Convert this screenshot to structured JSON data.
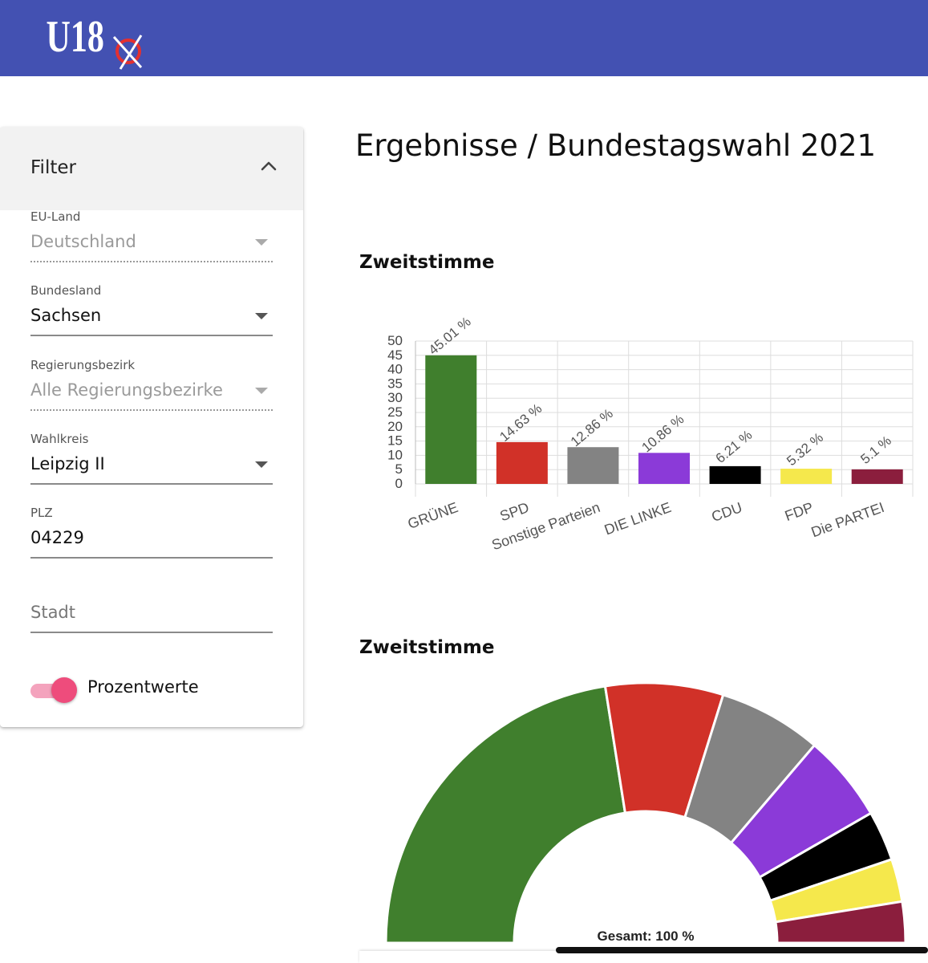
{
  "header": {
    "logo_text": "U18",
    "brand_color": "#4351b2"
  },
  "filter": {
    "title": "Filter",
    "fields": [
      {
        "label": "EU-Land",
        "value": "Deutschland",
        "disabled": true
      },
      {
        "label": "Bundesland",
        "value": "Sachsen",
        "disabled": false
      },
      {
        "label": "Regierungsbezirk",
        "value": "Alle Regierungsbezirke",
        "disabled": true
      },
      {
        "label": "Wahlkreis",
        "value": "Leipzig II",
        "disabled": false
      },
      {
        "label": "PLZ",
        "value": "04229"
      },
      {
        "label": "",
        "placeholder": "Stadt",
        "value": ""
      }
    ],
    "toggle": {
      "label": "Prozentwerte",
      "on": true,
      "color": "#ee4c7c"
    }
  },
  "page": {
    "title": "Ergebnisse / Bundestagswahl 2021"
  },
  "chart_data": [
    {
      "type": "bar",
      "title": "Zweitstimme",
      "categories": [
        "GRÜNE",
        "SPD",
        "Sonstige Parteien",
        "DIE LINKE",
        "CDU",
        "FDP",
        "Die PARTEI"
      ],
      "values": [
        45.01,
        14.63,
        12.86,
        10.86,
        6.21,
        5.32,
        5.1
      ],
      "value_labels": [
        "45.01 %",
        "14.63 %",
        "12.86 %",
        "10.86 %",
        "6.21 %",
        "5.32 %",
        "5.1 %"
      ],
      "colors": [
        "#407f2d",
        "#d13128",
        "#838383",
        "#8b3ad8",
        "#000000",
        "#f5e84c",
        "#8b1e3d"
      ],
      "yticks": [
        "0",
        "5",
        "10",
        "15",
        "20",
        "25",
        "30",
        "35",
        "40",
        "45",
        "50"
      ],
      "ylim": [
        0,
        50
      ],
      "grid": true
    },
    {
      "type": "pie",
      "title": "Zweitstimme",
      "categories": [
        "GRÜNE",
        "SPD",
        "Sonstige Parteien",
        "DIE LINKE",
        "CDU",
        "FDP",
        "Die PARTEI"
      ],
      "values": [
        45.01,
        14.63,
        12.86,
        10.86,
        6.21,
        5.32,
        5.1
      ],
      "colors": [
        "#407f2d",
        "#d13128",
        "#838383",
        "#8b3ad8",
        "#000000",
        "#f5e84c",
        "#8b1e3d"
      ],
      "center_label": "Gesamt: 100 %"
    }
  ]
}
